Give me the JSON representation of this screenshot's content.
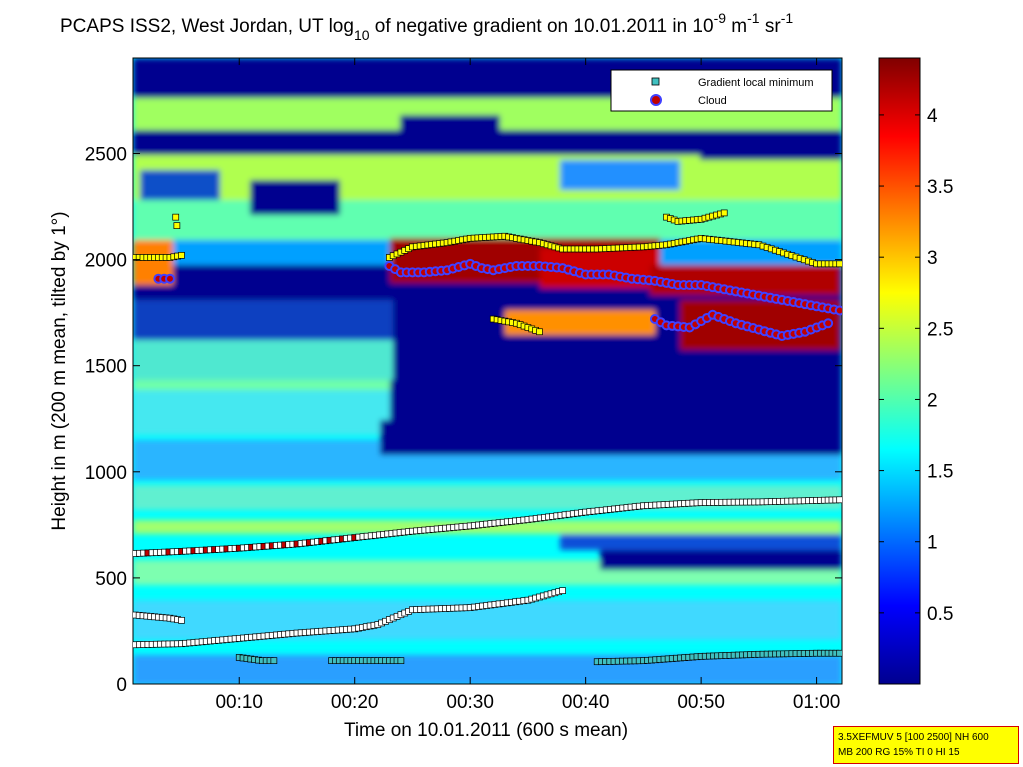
{
  "figure": {
    "title_main": "PCAPS ISS2, West Jordan, UT log",
    "title_sub": "10",
    "title_mid": " of negative gradient on 10.01.2011 in 10",
    "title_sup1": "-9",
    "title_mid2": " m",
    "title_sup2": "-1",
    "title_mid3": " sr",
    "title_sup3": "-1"
  },
  "info_box": {
    "line1": "3.5XEFMUV 5 [100 2500] NH 600",
    "line2": "MB 200 RG 15% TI 0 HI 15"
  },
  "colors": {
    "cloud_marker": "#c00000",
    "cloud_ring": "#4040ff",
    "minimum_marker": "#40c0c0",
    "colormap": [
      "#00008f",
      "#0000ff",
      "#0080ff",
      "#00ffff",
      "#80ff80",
      "#ffff00",
      "#ff8000",
      "#ff0000",
      "#800000"
    ]
  },
  "chart_data": {
    "type": "heatmap",
    "title": "PCAPS ISS2, West Jordan, UT log10 of negative gradient on 10.01.2011 in 10-9 m-1 sr-1",
    "xlabel": "Time on 10.01.2011 (600 s mean)",
    "ylabel": "Height in m (200 m mean, tilted by 1°)",
    "xlim_minutes": [
      0.8,
      62.2
    ],
    "ylim": [
      0,
      2950
    ],
    "x_ticks": [
      "00:10",
      "00:20",
      "00:30",
      "00:40",
      "00:50",
      "01:00"
    ],
    "x_tick_minutes": [
      10,
      20,
      30,
      40,
      50,
      60
    ],
    "y_ticks": [
      0,
      500,
      1000,
      1500,
      2000,
      2500
    ],
    "colorbar": {
      "range": [
        0,
        4.4
      ],
      "ticks": [
        0.5,
        1,
        1.5,
        2,
        2.5,
        3,
        3.5,
        4
      ],
      "tick_labels": [
        "0.5",
        "1",
        "1.5",
        "2",
        "2.5",
        "3",
        "3.5",
        "4"
      ]
    },
    "legend": {
      "placement": "top-right",
      "entries": [
        "Gradient local minimum",
        "Cloud"
      ]
    },
    "series": [
      {
        "name": "Gradient local minimum",
        "marker": "square",
        "layers": [
          {
            "t": [
              1,
              5,
              10,
              15,
              20,
              25,
              30,
              35,
              40,
              45,
              50,
              55,
              60,
              62
            ],
            "h": [
              615,
              625,
              640,
              660,
              690,
              720,
              745,
              775,
              810,
              840,
              855,
              858,
              865,
              868
            ]
          },
          {
            "t": [
              1,
              2,
              3,
              4,
              5
            ],
            "h": [
              325,
              320,
              315,
              310,
              300
            ]
          },
          {
            "t": [
              1,
              5,
              10,
              15,
              20,
              22,
              25,
              30,
              35,
              38
            ],
            "h": [
              185,
              190,
              215,
              240,
              260,
              280,
              350,
              360,
              395,
              440
            ]
          },
          {
            "t": [
              10,
              12,
              13
            ],
            "h": [
              125,
              110,
              110
            ]
          },
          {
            "t": [
              18,
              21,
              24
            ],
            "h": [
              110,
              110,
              110
            ]
          },
          {
            "t": [
              41,
              45,
              50,
              55,
              60,
              62
            ],
            "h": [
              105,
              110,
              130,
              140,
              145,
              145
            ]
          },
          {
            "t": [
              1,
              3,
              4,
              5
            ],
            "h": [
              2010,
              2010,
              2010,
              2020
            ]
          },
          {
            "t": [
              4.5,
              4.6
            ],
            "h": [
              2200,
              2160
            ]
          },
          {
            "t": [
              23,
              25,
              28,
              30,
              33,
              36,
              38,
              41,
              45,
              47,
              50,
              55,
              60,
              62
            ],
            "h": [
              2010,
              2060,
              2080,
              2100,
              2110,
              2080,
              2050,
              2050,
              2060,
              2070,
              2100,
              2070,
              1980,
              1980
            ]
          },
          {
            "t": [
              32,
              34,
              36
            ],
            "h": [
              1720,
              1700,
              1660
            ]
          },
          {
            "t": [
              47,
              48,
              50,
              52
            ],
            "h": [
              2200,
              2180,
              2190,
              2220
            ]
          }
        ]
      },
      {
        "name": "Cloud",
        "marker": "circle",
        "layers": [
          {
            "t": [
              3,
              3.5,
              4
            ],
            "h": [
              1910,
              1910,
              1910
            ]
          },
          {
            "t": [
              23,
              24,
              26,
              28,
              30,
              31,
              32,
              34,
              36,
              38,
              40,
              42,
              44,
              46,
              48,
              50,
              52,
              54,
              56,
              58,
              60,
              62
            ],
            "h": [
              1970,
              1940,
              1940,
              1950,
              1980,
              1960,
              1950,
              1970,
              1970,
              1960,
              1930,
              1930,
              1910,
              1900,
              1880,
              1880,
              1860,
              1840,
              1820,
              1800,
              1780,
              1760
            ]
          },
          {
            "t": [
              46,
              47,
              49,
              51,
              53,
              55,
              57,
              59,
              61
            ],
            "h": [
              1720,
              1690,
              1680,
              1740,
              1700,
              1670,
              1640,
              1660,
              1700
            ]
          }
        ]
      }
    ]
  }
}
